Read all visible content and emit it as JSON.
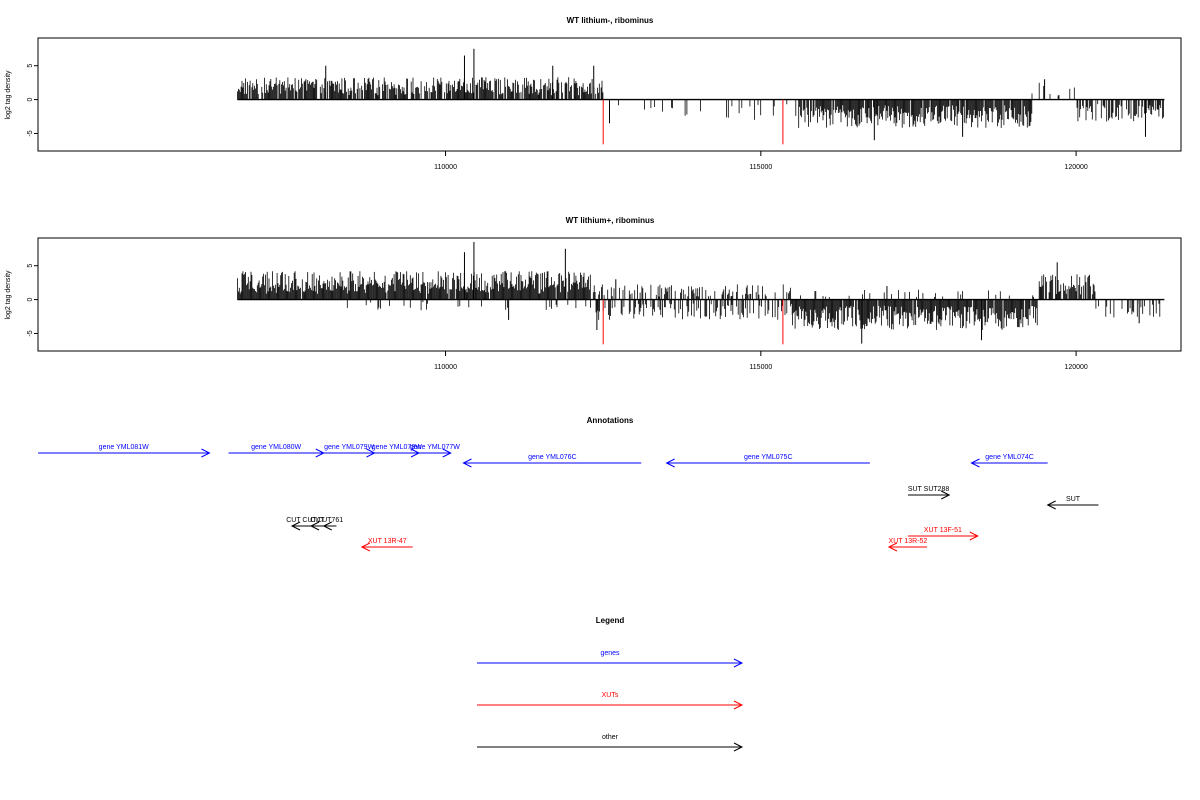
{
  "chart_data": [
    {
      "type": "bar",
      "title": "WT lithium-, ribominus",
      "ylabel": "log2 tag density",
      "xlabel": "",
      "xlim": [
        103600,
        121600
      ],
      "ylim": [
        -7,
        8.5
      ],
      "x_ticks": [
        110000,
        115000,
        120000
      ],
      "x_tick_labels": [
        "110000",
        "115000",
        "120000"
      ],
      "y_ticks": [
        -5,
        0,
        5
      ],
      "y_tick_labels": [
        "-5",
        "0",
        "5"
      ],
      "markers": [
        112500,
        115350
      ],
      "segments": [
        {
          "from": 106700,
          "to": 112500,
          "sign": 1,
          "density": 0.85,
          "mean": 2.2,
          "peaks": [
            [
              110450,
              7.5
            ],
            [
              110300,
              6.5
            ],
            [
              108100,
              5.0
            ],
            [
              111700,
              5.0
            ],
            [
              112350,
              5.0
            ]
          ]
        },
        {
          "from": 112500,
          "to": 115600,
          "sign": -1,
          "density": 0.12,
          "mean": 2.0,
          "peaks": [
            [
              112600,
              3.5
            ]
          ]
        },
        {
          "from": 115600,
          "to": 119300,
          "sign": -1,
          "density": 0.9,
          "mean": 2.8,
          "peaks": [
            [
              116800,
              6.0
            ],
            [
              118200,
              5.5
            ]
          ]
        },
        {
          "from": 119300,
          "to": 120000,
          "sign": 1,
          "density": 0.2,
          "mean": 1.8,
          "peaks": [
            [
              119500,
              3.0
            ]
          ]
        },
        {
          "from": 120000,
          "to": 121400,
          "sign": -1,
          "density": 0.6,
          "mean": 2.2,
          "peaks": [
            [
              121100,
              5.5
            ]
          ]
        }
      ]
    },
    {
      "type": "bar",
      "title": "WT lithium+, ribominus",
      "ylabel": "log2 tag density",
      "xlabel": "",
      "xlim": [
        103600,
        121600
      ],
      "ylim": [
        -7,
        8.5
      ],
      "x_ticks": [
        110000,
        115000,
        120000
      ],
      "x_tick_labels": [
        "110000",
        "115000",
        "120000"
      ],
      "y_ticks": [
        -5,
        0,
        5
      ],
      "y_tick_labels": [
        "-5",
        "0",
        "5"
      ],
      "markers": [
        112500,
        115350
      ],
      "segments": [
        {
          "from": 106700,
          "to": 112300,
          "sign": 1,
          "density": 0.95,
          "mean": 2.8,
          "peaks": [
            [
              110450,
              8.5
            ],
            [
              111900,
              7.5
            ],
            [
              110300,
              7.0
            ]
          ]
        },
        {
          "from": 108000,
          "to": 112300,
          "sign": -1,
          "density": 0.1,
          "mean": 1.2,
          "peaks": [
            [
              111000,
              3.0
            ]
          ]
        },
        {
          "from": 112300,
          "to": 115500,
          "sign": 1,
          "density": 0.4,
          "mean": 1.5,
          "peaks": [
            [
              112700,
              3.0
            ]
          ]
        },
        {
          "from": 112300,
          "to": 115500,
          "sign": -1,
          "density": 0.4,
          "mean": 2.0,
          "peaks": [
            [
              112400,
              4.5
            ]
          ]
        },
        {
          "from": 115500,
          "to": 119400,
          "sign": -1,
          "density": 0.95,
          "mean": 3.0,
          "peaks": [
            [
              116600,
              6.5
            ],
            [
              118500,
              6.0
            ]
          ]
        },
        {
          "from": 115500,
          "to": 119400,
          "sign": 1,
          "density": 0.15,
          "mean": 1.0,
          "peaks": [
            [
              117000,
              2.0
            ]
          ]
        },
        {
          "from": 119400,
          "to": 120300,
          "sign": 1,
          "density": 0.8,
          "mean": 2.5,
          "peaks": [
            [
              119700,
              5.5
            ]
          ]
        },
        {
          "from": 120300,
          "to": 121400,
          "sign": -1,
          "density": 0.35,
          "mean": 1.8,
          "peaks": [
            [
              121000,
              3.5
            ]
          ]
        }
      ]
    }
  ],
  "annotations": {
    "title": "Annotations",
    "genes": [
      {
        "label": "gene YML081W",
        "dir": "right",
        "from": 103600,
        "to": 106300
      },
      {
        "label": "gene YML080W",
        "dir": "right",
        "from": 106600,
        "to": 108100
      },
      {
        "label": "gene YML079W",
        "dir": "right",
        "from": 108100,
        "to": 108900
      },
      {
        "label": "gene YML078W",
        "dir": "right",
        "from": 108900,
        "to": 109600
      },
      {
        "label": "gene YML077W",
        "dir": "right",
        "from": 109600,
        "to": 110100
      },
      {
        "label": "gene YML076C",
        "dir": "left",
        "from": 110300,
        "to": 113100
      },
      {
        "label": "gene YML075C",
        "dir": "left",
        "from": 113500,
        "to": 116700
      },
      {
        "label": "gene YML074C",
        "dir": "left",
        "from": 118300,
        "to": 119500
      }
    ],
    "xuts": [
      {
        "label": "XUT 13R-47",
        "dir": "left",
        "from": 108700,
        "to": 109500
      },
      {
        "label": "XUT 13F-51",
        "dir": "right",
        "from": 117300,
        "to": 118400
      },
      {
        "label": "XUT 13R-52",
        "dir": "left",
        "from": 117000,
        "to": 117600
      }
    ],
    "other": [
      {
        "label": "SUT SUT288",
        "dir": "right",
        "from": 117300,
        "to": 117950
      },
      {
        "label": "SUT",
        "dir": "left",
        "from": 119500,
        "to": 120300
      },
      {
        "label": "CUT CUT",
        "dir": "left",
        "from": 107600,
        "to": 107900
      },
      {
        "label": "CUT",
        "dir": "left",
        "from": 107900,
        "to": 108100
      },
      {
        "label": "CUT761",
        "dir": "left",
        "from": 108100,
        "to": 108300
      }
    ]
  },
  "legend": {
    "title": "Legend",
    "items": [
      {
        "label": "genes",
        "color": "#0000ff"
      },
      {
        "label": "XUTs",
        "color": "#ff0000"
      },
      {
        "label": "other",
        "color": "#000000"
      }
    ]
  },
  "colors": {
    "genes": "#0000ff",
    "xuts": "#ff0000",
    "other": "#000000",
    "marker": "#ff0000",
    "bars": "#000000"
  }
}
